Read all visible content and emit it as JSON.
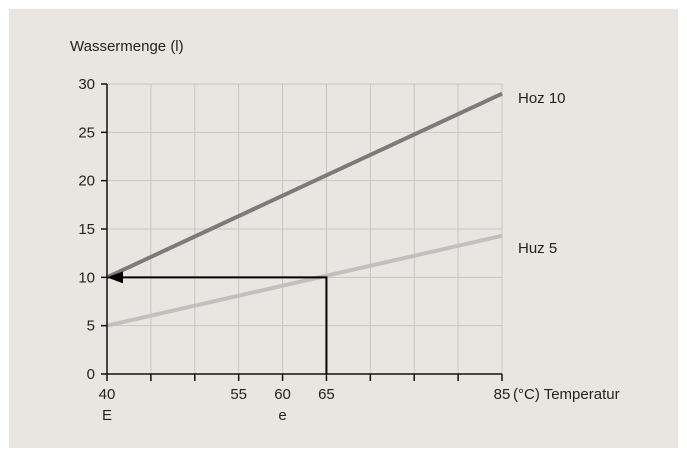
{
  "chart_data": {
    "type": "line",
    "ylabel": "Wassermenge (l)",
    "xlabel": "(°C) Temperatur",
    "xlim": [
      40,
      85
    ],
    "ylim": [
      0,
      30
    ],
    "x_gridlines": [
      40,
      45,
      50,
      55,
      60,
      65,
      70,
      75,
      80,
      85
    ],
    "y_gridlines": [
      0,
      5,
      10,
      15,
      20,
      25,
      30
    ],
    "x_tick_labels": [
      {
        "value": 40,
        "text": "40"
      },
      {
        "value": 55,
        "text": "55"
      },
      {
        "value": 60,
        "text": "60"
      },
      {
        "value": 65,
        "text": "65"
      },
      {
        "value": 85,
        "text": "85"
      }
    ],
    "y_tick_labels": [
      {
        "value": 0,
        "text": "0"
      },
      {
        "value": 5,
        "text": "5"
      },
      {
        "value": 10,
        "text": "10"
      },
      {
        "value": 15,
        "text": "15"
      },
      {
        "value": 20,
        "text": "20"
      },
      {
        "value": 25,
        "text": "25"
      },
      {
        "value": 30,
        "text": "30"
      }
    ],
    "x_sub_labels": [
      {
        "value": 40,
        "text": "E"
      },
      {
        "value": 60,
        "text": "e"
      }
    ],
    "grid": true,
    "series": [
      {
        "name": "Hoz 10",
        "x": [
          40,
          85
        ],
        "y": [
          10,
          29
        ],
        "color": "#7b7b7b"
      },
      {
        "name": "Huz 5",
        "x": [
          40,
          85
        ],
        "y": [
          5,
          14.3
        ],
        "color": "#c0c0c0"
      }
    ],
    "annotation": {
      "start": [
        65,
        0
      ],
      "corner": [
        65,
        10
      ],
      "end": [
        40,
        10
      ],
      "color": "#000000"
    }
  }
}
